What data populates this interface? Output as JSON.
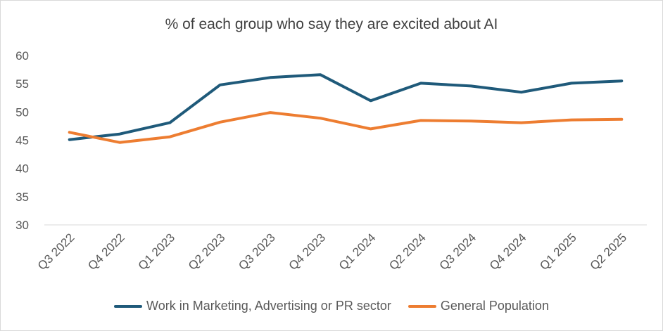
{
  "chart_data": {
    "type": "line",
    "title": "% of each group who say they are excited about AI",
    "categories": [
      "Q3 2022",
      "Q4 2022",
      "Q1 2023",
      "Q2 2023",
      "Q3 2023",
      "Q4 2023",
      "Q1 2024",
      "Q2 2024",
      "Q3 2024",
      "Q4 2024",
      "Q1 2025",
      "Q2 2025"
    ],
    "yticks": [
      30,
      35,
      40,
      45,
      50,
      55,
      60
    ],
    "ylim": [
      30,
      60
    ],
    "grid": false,
    "legend_position": "bottom",
    "series": [
      {
        "name": "Work in Marketing, Advertising or PR sector",
        "color": "#1f5a7a",
        "values": [
          45.1,
          46.1,
          48.1,
          54.8,
          56.1,
          56.6,
          52.0,
          55.1,
          54.6,
          53.5,
          55.1,
          55.5
        ]
      },
      {
        "name": "General Population",
        "color": "#ed7d31",
        "values": [
          46.4,
          44.6,
          45.6,
          48.2,
          49.9,
          48.9,
          47.0,
          48.5,
          48.4,
          48.1,
          48.6,
          48.7
        ]
      }
    ]
  }
}
